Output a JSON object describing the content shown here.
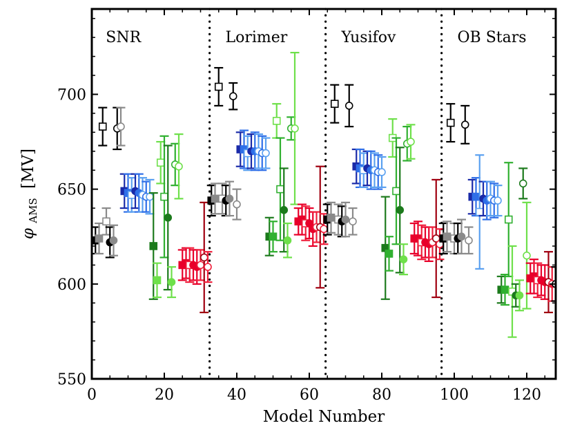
{
  "chart_data": {
    "type": "scatter",
    "xlabel": "Model Number",
    "ylabel_symbol": "φ",
    "ylabel_sub": "AMS",
    "ylabel_unit": "[MV]",
    "xlim": [
      0,
      128
    ],
    "ylim": [
      550,
      745
    ],
    "xticks": [
      0,
      20,
      40,
      60,
      80,
      100,
      120
    ],
    "yticks": [
      550,
      600,
      650,
      700
    ],
    "dividers": [
      32.5,
      64.5,
      96.5
    ],
    "regions": [
      {
        "label": "SNR",
        "x": 1
      },
      {
        "label": "Lorimer",
        "x": 34
      },
      {
        "label": "Yusifov",
        "x": 66
      },
      {
        "label": "OB Stars",
        "x": 98
      }
    ],
    "colors": {
      "black": "#000000",
      "gray": "#8a8a8a",
      "navy": "#1a2aa8",
      "blue": "#2f6fe8",
      "lightblue": "#5aa0f0",
      "darkgreen": "#1c7a1c",
      "green": "#30b030",
      "lightgreen": "#6ee04a",
      "darkred": "#a00010",
      "red": "#e8002a",
      "pink": "#f0203c"
    },
    "points": [
      {
        "x": 1,
        "y": 623,
        "e": 7,
        "c": "black",
        "m": "sq",
        "f": "full"
      },
      {
        "x": 2,
        "y": 624,
        "e": 8,
        "c": "gray",
        "m": "sq",
        "f": "full"
      },
      {
        "x": 3,
        "y": 683,
        "e": 10,
        "c": "black",
        "m": "sq",
        "f": "open"
      },
      {
        "x": 4,
        "y": 633,
        "e": 7,
        "c": "gray",
        "m": "sq",
        "f": "open"
      },
      {
        "x": 5,
        "y": 622,
        "e": 8,
        "c": "black",
        "m": "ci",
        "f": "full"
      },
      {
        "x": 6,
        "y": 623,
        "e": 8,
        "c": "gray",
        "m": "ci",
        "f": "full"
      },
      {
        "x": 7,
        "y": 682,
        "e": 11,
        "c": "black",
        "m": "ci",
        "f": "open"
      },
      {
        "x": 8,
        "y": 683,
        "e": 10,
        "c": "gray",
        "m": "ci",
        "f": "open"
      },
      {
        "x": 9,
        "y": 649,
        "e": 9,
        "c": "navy",
        "m": "sq",
        "f": "full"
      },
      {
        "x": 10,
        "y": 648,
        "e": 10,
        "c": "blue",
        "m": "sq",
        "f": "full"
      },
      {
        "x": 11,
        "y": 647,
        "e": 9,
        "c": "lightblue",
        "m": "sq",
        "f": "open"
      },
      {
        "x": 12,
        "y": 649,
        "e": 9,
        "c": "navy",
        "m": "ci",
        "f": "full"
      },
      {
        "x": 13,
        "y": 648,
        "e": 10,
        "c": "blue",
        "m": "ci",
        "f": "full"
      },
      {
        "x": 14,
        "y": 647,
        "e": 9,
        "c": "lightblue",
        "m": "ci",
        "f": "open"
      },
      {
        "x": 15,
        "y": 646,
        "e": 8,
        "c": "blue",
        "m": "ci",
        "f": "open"
      },
      {
        "x": 16,
        "y": 646,
        "e": 9,
        "c": "lightblue",
        "m": "ci",
        "f": "open"
      },
      {
        "x": 17,
        "y": 620,
        "e": 28,
        "c": "darkgreen",
        "m": "sq",
        "f": "full"
      },
      {
        "x": 18,
        "y": 602,
        "e": 9,
        "c": "lightgreen",
        "m": "sq",
        "f": "full"
      },
      {
        "x": 19,
        "y": 664,
        "e": 11,
        "c": "lightgreen",
        "m": "sq",
        "f": "open"
      },
      {
        "x": 20,
        "y": 646,
        "e": 32,
        "c": "green",
        "m": "sq",
        "f": "open"
      },
      {
        "x": 21,
        "y": 635,
        "e": 38,
        "c": "darkgreen",
        "m": "ci",
        "f": "full"
      },
      {
        "x": 22,
        "y": 601,
        "e": 8,
        "c": "lightgreen",
        "m": "ci",
        "f": "full"
      },
      {
        "x": 23,
        "y": 663,
        "e": 11,
        "c": "green",
        "m": "ci",
        "f": "open"
      },
      {
        "x": 24,
        "y": 662,
        "e": 17,
        "c": "lightgreen",
        "m": "ci",
        "f": "open"
      },
      {
        "x": 25,
        "y": 610,
        "e": 8,
        "c": "red",
        "m": "sq",
        "f": "full"
      },
      {
        "x": 26,
        "y": 611,
        "e": 8,
        "c": "red",
        "m": "sq",
        "f": "full"
      },
      {
        "x": 27,
        "y": 610,
        "e": 9,
        "c": "pink",
        "m": "sq",
        "f": "open"
      },
      {
        "x": 28,
        "y": 610,
        "e": 8,
        "c": "red",
        "m": "ci",
        "f": "full"
      },
      {
        "x": 29,
        "y": 609,
        "e": 9,
        "c": "red",
        "m": "ci",
        "f": "full"
      },
      {
        "x": 30,
        "y": 610,
        "e": 8,
        "c": "pink",
        "m": "ci",
        "f": "open"
      },
      {
        "x": 31,
        "y": 614,
        "e": 29,
        "c": "darkred",
        "m": "ci",
        "f": "open"
      },
      {
        "x": 32,
        "y": 609,
        "e": 8,
        "c": "pink",
        "m": "ci",
        "f": "open"
      },
      {
        "x": 33,
        "y": 644,
        "e": 8,
        "c": "black",
        "m": "sq",
        "f": "full"
      },
      {
        "x": 34,
        "y": 645,
        "e": 8,
        "c": "gray",
        "m": "sq",
        "f": "full"
      },
      {
        "x": 35,
        "y": 704,
        "e": 10,
        "c": "black",
        "m": "sq",
        "f": "open"
      },
      {
        "x": 36,
        "y": 645,
        "e": 8,
        "c": "gray",
        "m": "sq",
        "f": "open"
      },
      {
        "x": 37,
        "y": 644,
        "e": 8,
        "c": "black",
        "m": "ci",
        "f": "full"
      },
      {
        "x": 38,
        "y": 645,
        "e": 9,
        "c": "gray",
        "m": "ci",
        "f": "full"
      },
      {
        "x": 39,
        "y": 699,
        "e": 7,
        "c": "black",
        "m": "ci",
        "f": "open"
      },
      {
        "x": 40,
        "y": 642,
        "e": 8,
        "c": "gray",
        "m": "ci",
        "f": "open"
      },
      {
        "x": 41,
        "y": 671,
        "e": 9,
        "c": "navy",
        "m": "sq",
        "f": "full"
      },
      {
        "x": 42,
        "y": 671,
        "e": 10,
        "c": "blue",
        "m": "sq",
        "f": "full"
      },
      {
        "x": 43,
        "y": 669,
        "e": 9,
        "c": "lightblue",
        "m": "sq",
        "f": "open"
      },
      {
        "x": 44,
        "y": 670,
        "e": 9,
        "c": "navy",
        "m": "ci",
        "f": "full"
      },
      {
        "x": 45,
        "y": 670,
        "e": 10,
        "c": "blue",
        "m": "ci",
        "f": "full"
      },
      {
        "x": 46,
        "y": 670,
        "e": 9,
        "c": "lightblue",
        "m": "ci",
        "f": "open"
      },
      {
        "x": 47,
        "y": 669,
        "e": 9,
        "c": "blue",
        "m": "ci",
        "f": "open"
      },
      {
        "x": 48,
        "y": 669,
        "e": 8,
        "c": "lightblue",
        "m": "ci",
        "f": "open"
      },
      {
        "x": 49,
        "y": 625,
        "e": 10,
        "c": "darkgreen",
        "m": "sq",
        "f": "full"
      },
      {
        "x": 50,
        "y": 625,
        "e": 8,
        "c": "green",
        "m": "sq",
        "f": "full"
      },
      {
        "x": 51,
        "y": 686,
        "e": 9,
        "c": "lightgreen",
        "m": "sq",
        "f": "open"
      },
      {
        "x": 52,
        "y": 650,
        "e": 27,
        "c": "green",
        "m": "sq",
        "f": "open"
      },
      {
        "x": 53,
        "y": 639,
        "e": 22,
        "c": "darkgreen",
        "m": "ci",
        "f": "full"
      },
      {
        "x": 54,
        "y": 623,
        "e": 9,
        "c": "lightgreen",
        "m": "ci",
        "f": "full"
      },
      {
        "x": 55,
        "y": 682,
        "e": 6,
        "c": "green",
        "m": "ci",
        "f": "open"
      },
      {
        "x": 56,
        "y": 682,
        "e": 40,
        "c": "lightgreen",
        "m": "ci",
        "f": "open"
      },
      {
        "x": 57,
        "y": 633,
        "e": 7,
        "c": "red",
        "m": "sq",
        "f": "full"
      },
      {
        "x": 58,
        "y": 634,
        "e": 8,
        "c": "red",
        "m": "sq",
        "f": "full"
      },
      {
        "x": 59,
        "y": 632,
        "e": 9,
        "c": "pink",
        "m": "sq",
        "f": "open"
      },
      {
        "x": 60,
        "y": 632,
        "e": 8,
        "c": "red",
        "m": "ci",
        "f": "full"
      },
      {
        "x": 61,
        "y": 629,
        "e": 9,
        "c": "red",
        "m": "ci",
        "f": "full"
      },
      {
        "x": 62,
        "y": 630,
        "e": 8,
        "c": "pink",
        "m": "ci",
        "f": "open"
      },
      {
        "x": 63,
        "y": 630,
        "e": 32,
        "c": "darkred",
        "m": "ci",
        "f": "open"
      },
      {
        "x": 64,
        "y": 629,
        "e": 8,
        "c": "pink",
        "m": "ci",
        "f": "open"
      },
      {
        "x": 65,
        "y": 634,
        "e": 8,
        "c": "black",
        "m": "sq",
        "f": "full"
      },
      {
        "x": 66,
        "y": 635,
        "e": 8,
        "c": "gray",
        "m": "sq",
        "f": "full"
      },
      {
        "x": 67,
        "y": 695,
        "e": 10,
        "c": "black",
        "m": "sq",
        "f": "open"
      },
      {
        "x": 68,
        "y": 634,
        "e": 8,
        "c": "gray",
        "m": "sq",
        "f": "open"
      },
      {
        "x": 69,
        "y": 633,
        "e": 8,
        "c": "black",
        "m": "ci",
        "f": "full"
      },
      {
        "x": 70,
        "y": 634,
        "e": 9,
        "c": "gray",
        "m": "ci",
        "f": "full"
      },
      {
        "x": 71,
        "y": 694,
        "e": 11,
        "c": "black",
        "m": "ci",
        "f": "open"
      },
      {
        "x": 72,
        "y": 633,
        "e": 7,
        "c": "gray",
        "m": "ci",
        "f": "open"
      },
      {
        "x": 73,
        "y": 662,
        "e": 9,
        "c": "navy",
        "m": "sq",
        "f": "full"
      },
      {
        "x": 74,
        "y": 661,
        "e": 10,
        "c": "blue",
        "m": "sq",
        "f": "full"
      },
      {
        "x": 75,
        "y": 660,
        "e": 9,
        "c": "lightblue",
        "m": "sq",
        "f": "open"
      },
      {
        "x": 76,
        "y": 661,
        "e": 9,
        "c": "navy",
        "m": "ci",
        "f": "full"
      },
      {
        "x": 77,
        "y": 660,
        "e": 10,
        "c": "blue",
        "m": "ci",
        "f": "full"
      },
      {
        "x": 78,
        "y": 660,
        "e": 9,
        "c": "lightblue",
        "m": "ci",
        "f": "open"
      },
      {
        "x": 79,
        "y": 659,
        "e": 9,
        "c": "blue",
        "m": "ci",
        "f": "open"
      },
      {
        "x": 80,
        "y": 659,
        "e": 8,
        "c": "lightblue",
        "m": "ci",
        "f": "open"
      },
      {
        "x": 81,
        "y": 619,
        "e": 27,
        "c": "darkgreen",
        "m": "sq",
        "f": "full"
      },
      {
        "x": 82,
        "y": 616,
        "e": 9,
        "c": "green",
        "m": "sq",
        "f": "full"
      },
      {
        "x": 83,
        "y": 677,
        "e": 10,
        "c": "lightgreen",
        "m": "sq",
        "f": "open"
      },
      {
        "x": 84,
        "y": 649,
        "e": 28,
        "c": "green",
        "m": "sq",
        "f": "open"
      },
      {
        "x": 85,
        "y": 639,
        "e": 33,
        "c": "darkgreen",
        "m": "ci",
        "f": "full"
      },
      {
        "x": 86,
        "y": 613,
        "e": 8,
        "c": "lightgreen",
        "m": "ci",
        "f": "full"
      },
      {
        "x": 87,
        "y": 674,
        "e": 9,
        "c": "green",
        "m": "ci",
        "f": "open"
      },
      {
        "x": 88,
        "y": 675,
        "e": 9,
        "c": "lightgreen",
        "m": "ci",
        "f": "open"
      },
      {
        "x": 89,
        "y": 624,
        "e": 8,
        "c": "red",
        "m": "sq",
        "f": "full"
      },
      {
        "x": 90,
        "y": 624,
        "e": 9,
        "c": "red",
        "m": "sq",
        "f": "full"
      },
      {
        "x": 91,
        "y": 622,
        "e": 9,
        "c": "pink",
        "m": "sq",
        "f": "open"
      },
      {
        "x": 92,
        "y": 622,
        "e": 8,
        "c": "red",
        "m": "ci",
        "f": "full"
      },
      {
        "x": 93,
        "y": 621,
        "e": 9,
        "c": "red",
        "m": "ci",
        "f": "full"
      },
      {
        "x": 94,
        "y": 622,
        "e": 8,
        "c": "pink",
        "m": "ci",
        "f": "open"
      },
      {
        "x": 95,
        "y": 624,
        "e": 31,
        "c": "darkred",
        "m": "ci",
        "f": "open"
      },
      {
        "x": 96,
        "y": 621,
        "e": 8,
        "c": "pink",
        "m": "ci",
        "f": "open"
      },
      {
        "x": 97,
        "y": 624,
        "e": 8,
        "c": "black",
        "m": "sq",
        "f": "full"
      },
      {
        "x": 98,
        "y": 625,
        "e": 8,
        "c": "gray",
        "m": "sq",
        "f": "full"
      },
      {
        "x": 99,
        "y": 685,
        "e": 10,
        "c": "black",
        "m": "sq",
        "f": "open"
      },
      {
        "x": 100,
        "y": 624,
        "e": 8,
        "c": "gray",
        "m": "sq",
        "f": "open"
      },
      {
        "x": 101,
        "y": 624,
        "e": 8,
        "c": "black",
        "m": "ci",
        "f": "full"
      },
      {
        "x": 102,
        "y": 625,
        "e": 9,
        "c": "gray",
        "m": "ci",
        "f": "full"
      },
      {
        "x": 103,
        "y": 684,
        "e": 10,
        "c": "black",
        "m": "ci",
        "f": "open"
      },
      {
        "x": 104,
        "y": 623,
        "e": 7,
        "c": "gray",
        "m": "ci",
        "f": "open"
      },
      {
        "x": 105,
        "y": 646,
        "e": 9,
        "c": "navy",
        "m": "sq",
        "f": "full"
      },
      {
        "x": 106,
        "y": 646,
        "e": 10,
        "c": "blue",
        "m": "sq",
        "f": "full"
      },
      {
        "x": 107,
        "y": 638,
        "e": 30,
        "c": "lightblue",
        "m": "sq",
        "f": "open"
      },
      {
        "x": 108,
        "y": 645,
        "e": 9,
        "c": "navy",
        "m": "ci",
        "f": "full"
      },
      {
        "x": 109,
        "y": 644,
        "e": 10,
        "c": "blue",
        "m": "ci",
        "f": "full"
      },
      {
        "x": 110,
        "y": 645,
        "e": 9,
        "c": "lightblue",
        "m": "ci",
        "f": "open"
      },
      {
        "x": 111,
        "y": 644,
        "e": 9,
        "c": "blue",
        "m": "ci",
        "f": "open"
      },
      {
        "x": 112,
        "y": 644,
        "e": 8,
        "c": "lightblue",
        "m": "ci",
        "f": "open"
      },
      {
        "x": 113,
        "y": 597,
        "e": 7,
        "c": "darkgreen",
        "m": "sq",
        "f": "full"
      },
      {
        "x": 114,
        "y": 597,
        "e": 8,
        "c": "green",
        "m": "sq",
        "f": "full"
      },
      {
        "x": 115,
        "y": 634,
        "e": 30,
        "c": "green",
        "m": "sq",
        "f": "open"
      },
      {
        "x": 116,
        "y": 596,
        "e": 24,
        "c": "lightgreen",
        "m": "sq",
        "f": "open"
      },
      {
        "x": 117,
        "y": 594,
        "e": 6,
        "c": "darkgreen",
        "m": "ci",
        "f": "full"
      },
      {
        "x": 118,
        "y": 594,
        "e": 8,
        "c": "lightgreen",
        "m": "ci",
        "f": "full"
      },
      {
        "x": 119,
        "y": 653,
        "e": 8,
        "c": "darkgreen",
        "m": "ci",
        "f": "open"
      },
      {
        "x": 120,
        "y": 615,
        "e": 28,
        "c": "lightgreen",
        "m": "ci",
        "f": "open"
      },
      {
        "x": 121,
        "y": 603,
        "e": 8,
        "c": "red",
        "m": "sq",
        "f": "full"
      },
      {
        "x": 122,
        "y": 604,
        "e": 9,
        "c": "red",
        "m": "sq",
        "f": "full"
      },
      {
        "x": 123,
        "y": 602,
        "e": 9,
        "c": "pink",
        "m": "sq",
        "f": "open"
      },
      {
        "x": 124,
        "y": 602,
        "e": 8,
        "c": "red",
        "m": "ci",
        "f": "full"
      },
      {
        "x": 125,
        "y": 601,
        "e": 9,
        "c": "red",
        "m": "ci",
        "f": "full"
      },
      {
        "x": 126,
        "y": 601,
        "e": 16,
        "c": "darkred",
        "m": "ci",
        "f": "open"
      },
      {
        "x": 127,
        "y": 600,
        "e": 9,
        "c": "pink",
        "m": "ci",
        "f": "half"
      },
      {
        "x": 128,
        "y": 600,
        "e": 9,
        "c": "black",
        "m": "ci",
        "f": "open"
      }
    ]
  }
}
